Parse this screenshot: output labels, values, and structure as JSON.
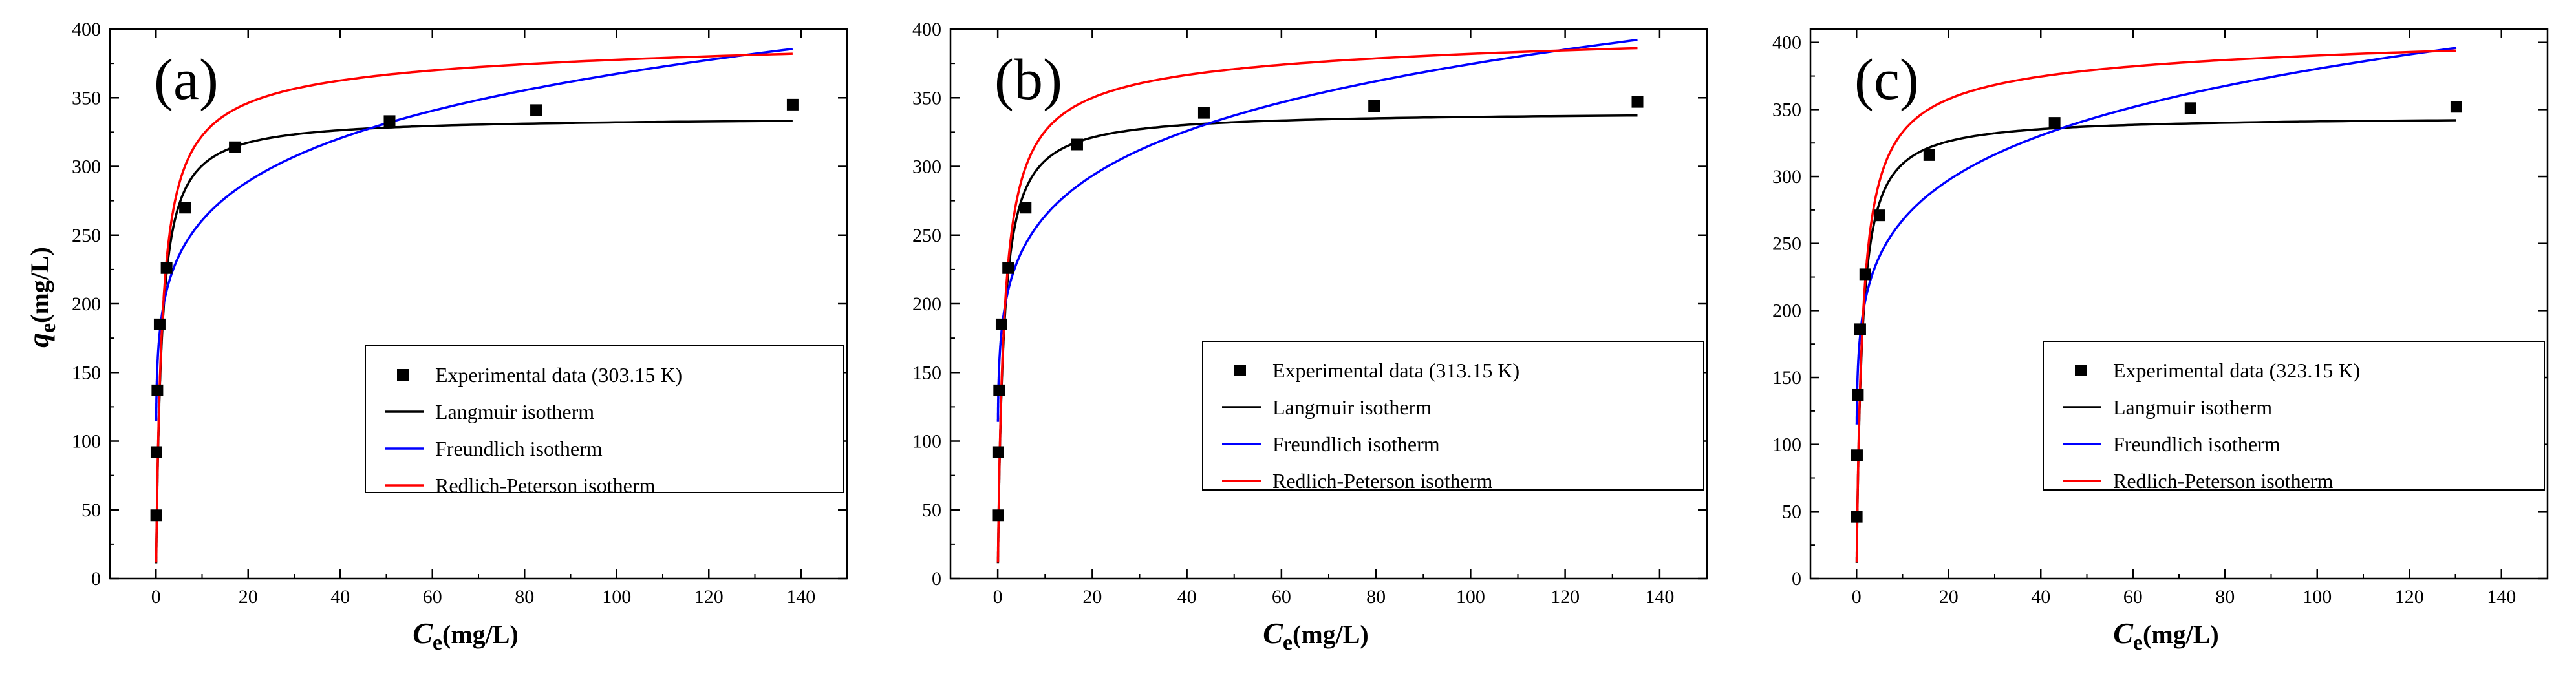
{
  "chart_data": [
    {
      "type": "scatter",
      "panel_label": "(a)",
      "xlabel_var": "C",
      "xlabel_sub": "e",
      "xlabel_unit": "(mg/L)",
      "ylabel_var": "q",
      "ylabel_sub": "e",
      "ylabel_unit": "(mg/L)",
      "xlim": [
        -10,
        150
      ],
      "ylim": [
        0,
        400
      ],
      "xticks": [
        0,
        20,
        40,
        60,
        80,
        100,
        120,
        140
      ],
      "yticks": [
        0,
        50,
        100,
        150,
        200,
        250,
        300,
        350,
        400
      ],
      "legend_position": "center-right",
      "series": [
        {
          "name": "Experimental data (303.15 K)",
          "kind": "points",
          "color": "#000000",
          "x": [
            0.05,
            0.1,
            0.3,
            0.8,
            2.3,
            6.3,
            17.1,
            50.7,
            82.5,
            138.2
          ],
          "y": [
            46,
            92,
            137,
            185,
            226,
            270,
            314,
            333,
            341,
            345
          ]
        },
        {
          "name": "Langmuir isotherm",
          "kind": "curve",
          "color": "#000000",
          "model": "langmuir",
          "qm": 336,
          "K": 0.85,
          "xmax": 138.2
        },
        {
          "name": "Freundlich isotherm",
          "kind": "curve",
          "color": "#0000ff",
          "model": "freundlich",
          "Kf": 185,
          "n": 0.149,
          "xmax": 138.2
        },
        {
          "name": "Redlich-Peterson isotherm",
          "kind": "curve",
          "color": "#ff0000",
          "model": "rp",
          "A": 300,
          "B": 0.88,
          "g": 0.975,
          "xmax": 138.2
        }
      ]
    },
    {
      "type": "scatter",
      "panel_label": "(b)",
      "xlabel_var": "C",
      "xlabel_sub": "e",
      "xlabel_unit": "(mg/L)",
      "ylabel_var": "",
      "ylabel_sub": "",
      "ylabel_unit": "",
      "xlim": [
        -10,
        150
      ],
      "ylim": [
        0,
        400
      ],
      "xticks": [
        0,
        20,
        40,
        60,
        80,
        100,
        120,
        140
      ],
      "yticks": [
        0,
        50,
        100,
        150,
        200,
        250,
        300,
        350,
        400
      ],
      "legend_position": "center-right",
      "series": [
        {
          "name": "Experimental data (313.15 K)",
          "kind": "points",
          "color": "#000000",
          "x": [
            0.05,
            0.1,
            0.3,
            0.8,
            2.2,
            5.9,
            16.8,
            43.6,
            79.6,
            135.3
          ],
          "y": [
            46,
            92,
            137,
            185,
            226,
            270,
            316,
            339,
            344,
            347
          ]
        },
        {
          "name": "Langmuir isotherm",
          "kind": "curve",
          "color": "#000000",
          "model": "langmuir",
          "qm": 340,
          "K": 0.85,
          "xmax": 135.3
        },
        {
          "name": "Freundlich isotherm",
          "kind": "curve",
          "color": "#0000ff",
          "model": "freundlich",
          "Kf": 186,
          "n": 0.152,
          "xmax": 135.3
        },
        {
          "name": "Redlich-Peterson isotherm",
          "kind": "curve",
          "color": "#ff0000",
          "model": "rp",
          "A": 300,
          "B": 0.87,
          "g": 0.975,
          "xmax": 135.3
        }
      ]
    },
    {
      "type": "scatter",
      "panel_label": "(c)",
      "xlabel_var": "C",
      "xlabel_sub": "e",
      "xlabel_unit": "(mg/L)",
      "ylabel_var": "",
      "ylabel_sub": "",
      "ylabel_unit": "",
      "xlim": [
        -10,
        150
      ],
      "ylim": [
        0,
        410
      ],
      "xticks": [
        0,
        20,
        40,
        60,
        80,
        100,
        120,
        140
      ],
      "yticks": [
        0,
        50,
        100,
        150,
        200,
        250,
        300,
        350,
        400
      ],
      "legend_position": "center-right",
      "series": [
        {
          "name": "Experimental data (323.15 K)",
          "kind": "points",
          "color": "#000000",
          "x": [
            0.05,
            0.1,
            0.3,
            0.8,
            1.9,
            5.0,
            15.8,
            43.0,
            72.5,
            130.2
          ],
          "y": [
            46,
            92,
            137,
            186,
            227,
            271,
            316,
            340,
            351,
            352
          ]
        },
        {
          "name": "Langmuir isotherm",
          "kind": "curve",
          "color": "#000000",
          "model": "langmuir",
          "qm": 345,
          "K": 0.87,
          "xmax": 130.2
        },
        {
          "name": "Freundlich isotherm",
          "kind": "curve",
          "color": "#0000ff",
          "model": "freundlich",
          "Kf": 188,
          "n": 0.153,
          "xmax": 130.2
        },
        {
          "name": "Redlich-Peterson isotherm",
          "kind": "curve",
          "color": "#ff0000",
          "model": "rp",
          "A": 310,
          "B": 0.88,
          "g": 0.975,
          "xmax": 130.2
        }
      ]
    }
  ]
}
